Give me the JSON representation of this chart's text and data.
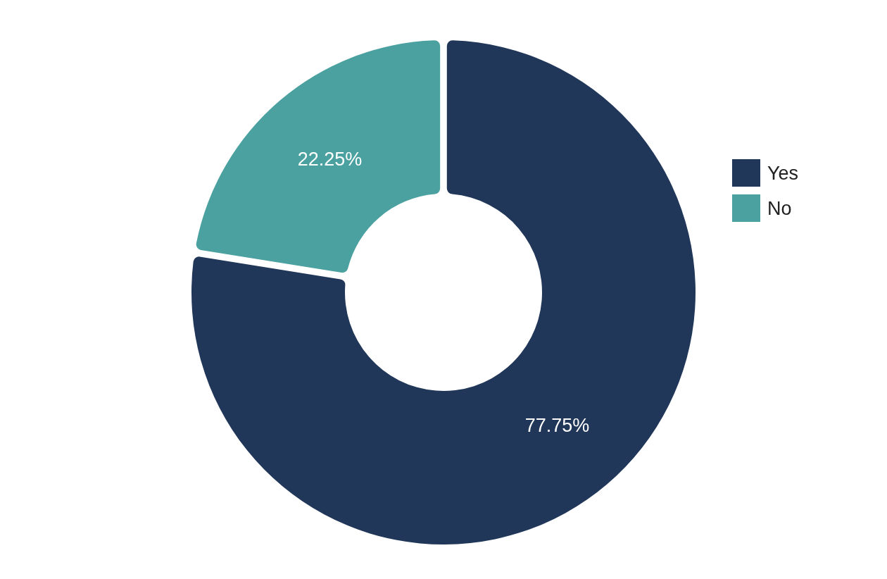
{
  "chart_data": {
    "type": "donut",
    "categories": [
      "Yes",
      "No"
    ],
    "values": [
      77.75,
      22.25
    ],
    "colors": [
      "#213759",
      "#4aa1a0"
    ],
    "value_labels": [
      "77.75%",
      "22.25%"
    ],
    "legend": "right"
  }
}
